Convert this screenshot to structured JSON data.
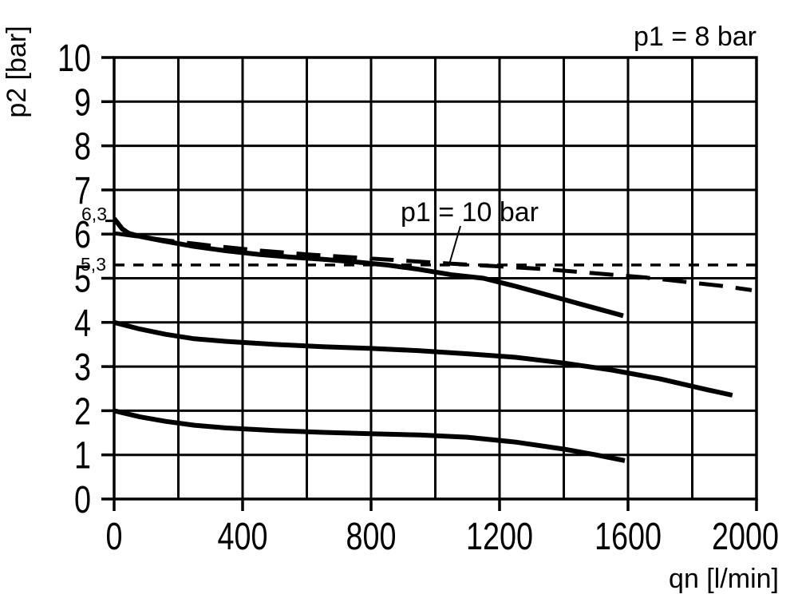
{
  "colors": {
    "ink": "#000000",
    "background": "#ffffff"
  },
  "chart_data": {
    "type": "line",
    "title": "p1 = 8 bar",
    "xlabel": "qn [l/min]",
    "ylabel": "p2 [bar]",
    "xlim": [
      0,
      2000
    ],
    "ylim": [
      0,
      10
    ],
    "x_grid_step": 200,
    "y_grid_step": 1,
    "grid": true,
    "xticks_major": [
      0,
      400,
      800,
      1200,
      1600,
      2000
    ],
    "yticks_major": [
      0,
      1,
      2,
      3,
      4,
      5,
      6,
      7,
      8,
      9,
      10
    ],
    "annotations": {
      "p1_10": {
        "text": "p1 = 10 bar",
        "points_to_series": "p1_10"
      },
      "y63": {
        "text": "6,3",
        "value": 6.3
      },
      "y53": {
        "text": "5,3",
        "value": 5.3
      }
    },
    "series": [
      {
        "id": "p1_8_set_6_3",
        "name": "outlet pressure, setting 6.3 bar (p1 = 8 bar)",
        "style": "solid",
        "points": [
          [
            0,
            6.35
          ],
          [
            10,
            6.26
          ],
          [
            25,
            6.12
          ],
          [
            45,
            6.02
          ],
          [
            80,
            5.95
          ],
          [
            150,
            5.85
          ],
          [
            250,
            5.72
          ],
          [
            350,
            5.62
          ],
          [
            450,
            5.54
          ],
          [
            550,
            5.48
          ],
          [
            650,
            5.43
          ],
          [
            750,
            5.37
          ],
          [
            850,
            5.3
          ],
          [
            950,
            5.2
          ],
          [
            1050,
            5.08
          ],
          [
            1150,
            5.0
          ],
          [
            1250,
            4.82
          ],
          [
            1350,
            4.62
          ],
          [
            1450,
            4.42
          ],
          [
            1520,
            4.28
          ],
          [
            1585,
            4.15
          ]
        ]
      },
      {
        "id": "p1_10",
        "name": "outlet pressure, setting 6.3 bar (p1 = 10 bar)",
        "style": "long-dash",
        "points": [
          [
            0,
            6.02
          ],
          [
            150,
            5.87
          ],
          [
            300,
            5.74
          ],
          [
            450,
            5.63
          ],
          [
            600,
            5.54
          ],
          [
            750,
            5.47
          ],
          [
            900,
            5.4
          ],
          [
            1050,
            5.33
          ],
          [
            1200,
            5.27
          ],
          [
            1350,
            5.2
          ],
          [
            1500,
            5.11
          ],
          [
            1650,
            5.02
          ],
          [
            1800,
            4.9
          ],
          [
            1900,
            4.82
          ],
          [
            1985,
            4.73
          ]
        ]
      },
      {
        "id": "ref_5_3",
        "name": "reference line 5.3 bar",
        "style": "short-dash",
        "points": [
          [
            0,
            5.3
          ],
          [
            2000,
            5.3
          ]
        ]
      },
      {
        "id": "set_4",
        "name": "outlet pressure, setting 4 bar",
        "style": "solid",
        "points": [
          [
            0,
            4.0
          ],
          [
            80,
            3.85
          ],
          [
            160,
            3.73
          ],
          [
            250,
            3.63
          ],
          [
            350,
            3.57
          ],
          [
            500,
            3.5
          ],
          [
            650,
            3.45
          ],
          [
            800,
            3.41
          ],
          [
            950,
            3.36
          ],
          [
            1100,
            3.29
          ],
          [
            1250,
            3.21
          ],
          [
            1400,
            3.08
          ],
          [
            1550,
            2.92
          ],
          [
            1700,
            2.72
          ],
          [
            1850,
            2.47
          ],
          [
            1925,
            2.35
          ]
        ]
      },
      {
        "id": "set_2",
        "name": "outlet pressure, setting 2 bar",
        "style": "solid",
        "points": [
          [
            0,
            2.0
          ],
          [
            80,
            1.86
          ],
          [
            160,
            1.76
          ],
          [
            250,
            1.67
          ],
          [
            350,
            1.61
          ],
          [
            500,
            1.55
          ],
          [
            650,
            1.51
          ],
          [
            800,
            1.48
          ],
          [
            950,
            1.45
          ],
          [
            1100,
            1.4
          ],
          [
            1250,
            1.29
          ],
          [
            1400,
            1.13
          ],
          [
            1500,
            1.0
          ],
          [
            1590,
            0.87
          ]
        ]
      }
    ]
  }
}
